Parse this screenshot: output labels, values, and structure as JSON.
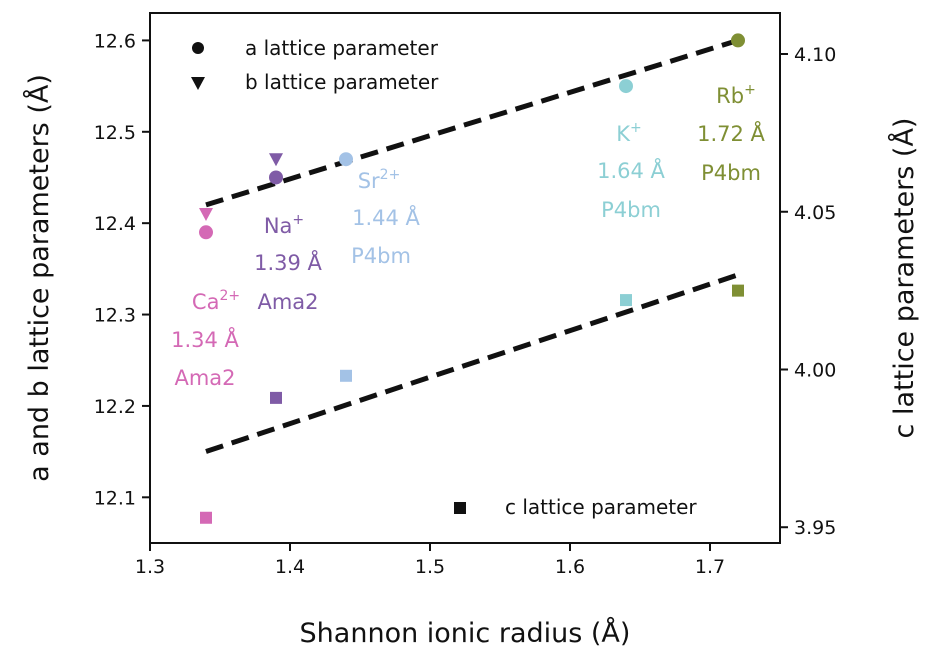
{
  "chart_data": {
    "type": "scatter",
    "xlabel": "Shannon ionic radius (Å)",
    "ylabel_left": "a and b lattice parameters (Å)",
    "ylabel_right": "c lattice parameters (Å)",
    "xlim": [
      1.3,
      1.75
    ],
    "ylim_left": [
      12.05,
      12.63
    ],
    "ylim_right": [
      3.945,
      4.113
    ],
    "xticks": [
      "1.3",
      "1.4",
      "1.5",
      "1.6",
      "1.7"
    ],
    "xtick_values": [
      1.3,
      1.4,
      1.5,
      1.6,
      1.7
    ],
    "yticks_left": [
      "12.1",
      "12.2",
      "12.3",
      "12.4",
      "12.5",
      "12.6"
    ],
    "ytick_values_left": [
      12.1,
      12.2,
      12.3,
      12.4,
      12.5,
      12.6
    ],
    "yticks_right": [
      "3.95",
      "4.00",
      "4.05",
      "4.10"
    ],
    "ytick_values_right": [
      3.95,
      4.0,
      4.05,
      4.1
    ],
    "legend": [
      {
        "marker": "circle",
        "label": "a lattice parameter"
      },
      {
        "marker": "triangle-down",
        "label": "b lattice parameter"
      },
      {
        "marker": "square",
        "label": "c lattice parameter"
      }
    ],
    "series": [
      {
        "name": "a lattice parameter",
        "marker": "circle",
        "axis": "left",
        "points": [
          {
            "x": 1.34,
            "y": 12.39,
            "color": "#d469b5"
          },
          {
            "x": 1.39,
            "y": 12.45,
            "color": "#7f5ba6"
          },
          {
            "x": 1.44,
            "y": 12.47,
            "color": "#a3c2e6"
          },
          {
            "x": 1.64,
            "y": 12.55,
            "color": "#8ccfd4"
          },
          {
            "x": 1.72,
            "y": 12.6,
            "color": "#7f8f34"
          }
        ]
      },
      {
        "name": "b lattice parameter",
        "marker": "triangle-down",
        "axis": "left",
        "points": [
          {
            "x": 1.34,
            "y": 12.41,
            "color": "#d469b5"
          },
          {
            "x": 1.39,
            "y": 12.47,
            "color": "#7f5ba6"
          }
        ]
      },
      {
        "name": "c lattice parameter",
        "marker": "square",
        "axis": "right",
        "points": [
          {
            "x": 1.34,
            "y": 3.953,
            "color": "#d469b5"
          },
          {
            "x": 1.39,
            "y": 3.991,
            "color": "#7f5ba6"
          },
          {
            "x": 1.44,
            "y": 3.998,
            "color": "#a3c2e6"
          },
          {
            "x": 1.64,
            "y": 4.022,
            "color": "#8ccfd4"
          },
          {
            "x": 1.72,
            "y": 4.025,
            "color": "#7f8f34"
          }
        ]
      }
    ],
    "fits": [
      {
        "axis": "left",
        "x": [
          1.34,
          1.72
        ],
        "y": [
          12.42,
          12.6
        ]
      },
      {
        "axis": "right",
        "x": [
          1.34,
          1.72
        ],
        "y": [
          3.974,
          4.03
        ]
      }
    ],
    "annotations": [
      {
        "ion": "Ca",
        "charge": "2+",
        "radius": "1.34 Å",
        "group": "Ama2",
        "color": "#d469b5"
      },
      {
        "ion": "Na",
        "charge": "+",
        "radius": "1.39 Å",
        "group": "Ama2",
        "color": "#7f5ba6"
      },
      {
        "ion": "Sr",
        "charge": "2+",
        "radius": "1.44 Å",
        "group": "P4bm",
        "color": "#a3c2e6"
      },
      {
        "ion": "K",
        "charge": "+",
        "radius": "1.64 Å",
        "group": "P4bm",
        "color": "#8ccfd4"
      },
      {
        "ion": "Rb",
        "charge": "+",
        "radius": "1.72 Å",
        "group": "P4bm",
        "color": "#7f8f34"
      }
    ]
  }
}
